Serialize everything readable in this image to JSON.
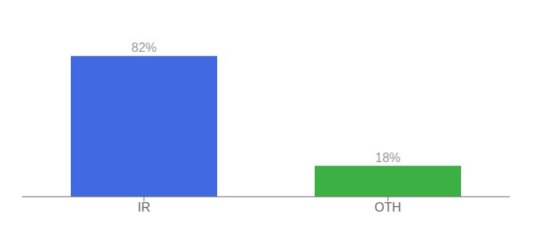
{
  "chart_data": {
    "type": "bar",
    "categories": [
      "IR",
      "OTH"
    ],
    "values": [
      82,
      18
    ],
    "colors": [
      "#4169e1",
      "#3cb043"
    ],
    "value_labels": [
      "82%",
      "18%"
    ],
    "data_labels": true,
    "ylim": [
      0,
      100
    ],
    "tick_labels": "x",
    "grid": false
  }
}
